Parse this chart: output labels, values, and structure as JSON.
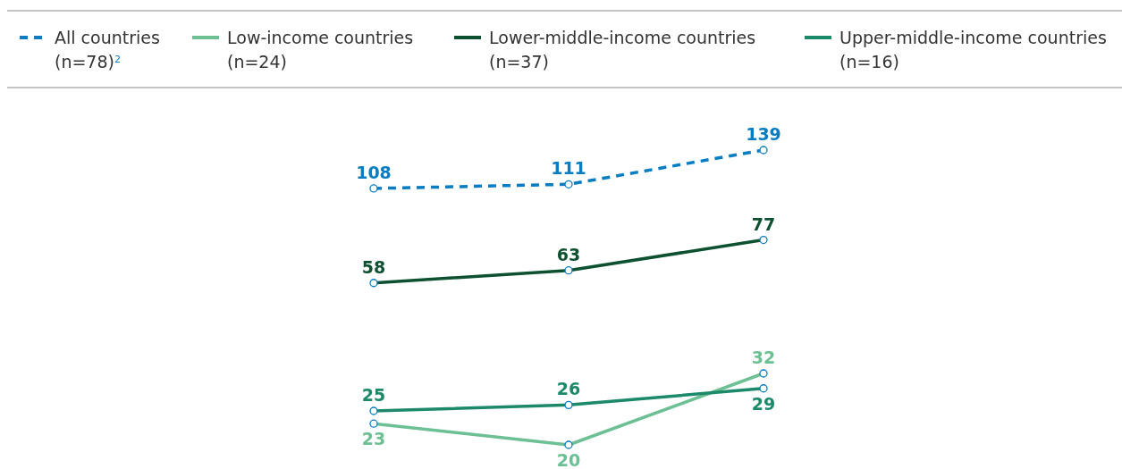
{
  "chart_data": {
    "type": "line",
    "categories": [
      null,
      null,
      null
    ],
    "log": true,
    "legend": "top",
    "marker": "circle",
    "data_labels": true,
    "series": [
      {
        "name": "All countries (n=78)$^{2}$",
        "color": "#0a7cc1",
        "values": [
          108,
          111,
          139
        ],
        "line_style": "dashed"
      },
      {
        "name": "Low-income countries (n=24)",
        "color": "#6dbf94",
        "values": [
          23,
          20,
          32
        ]
      },
      {
        "name": "Lower-middle-income countries (n=37)",
        "color": "#0d5131",
        "values": [
          58,
          63,
          77
        ]
      },
      {
        "name": "Upper-middle-income countries (n=16)",
        "color": "#1c8a6a",
        "values": [
          25,
          26,
          29
        ]
      }
    ]
  }
}
